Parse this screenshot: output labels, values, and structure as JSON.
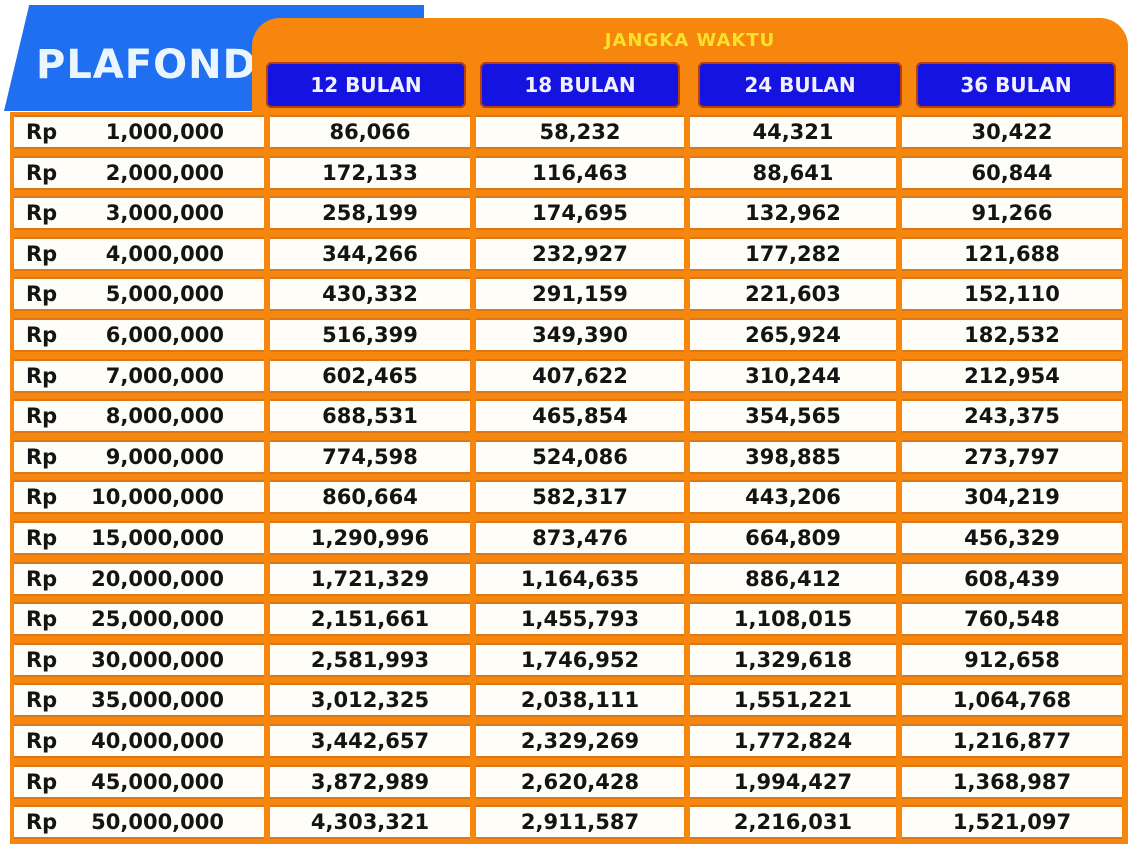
{
  "header": {
    "plafond_label": "PLAFOND",
    "jangka_waktu_label": "JANGKA WAKTU",
    "columns": [
      "12 BULAN",
      "18 BULAN",
      "24 BULAN",
      "36 BULAN"
    ]
  },
  "colors": {
    "plafond_blue": "#1f6ff0",
    "frame_orange": "#f7860f",
    "column_header_blue": "#1413e0",
    "jangka_yellow": "#f9e22a",
    "cell_bg": "#fffdf7"
  },
  "currency": "Rp",
  "rows": [
    {
      "plafond": "1,000,000",
      "m12": "86,066",
      "m18": "58,232",
      "m24": "44,321",
      "m36": "30,422"
    },
    {
      "plafond": "2,000,000",
      "m12": "172,133",
      "m18": "116,463",
      "m24": "88,641",
      "m36": "60,844"
    },
    {
      "plafond": "3,000,000",
      "m12": "258,199",
      "m18": "174,695",
      "m24": "132,962",
      "m36": "91,266"
    },
    {
      "plafond": "4,000,000",
      "m12": "344,266",
      "m18": "232,927",
      "m24": "177,282",
      "m36": "121,688"
    },
    {
      "plafond": "5,000,000",
      "m12": "430,332",
      "m18": "291,159",
      "m24": "221,603",
      "m36": "152,110"
    },
    {
      "plafond": "6,000,000",
      "m12": "516,399",
      "m18": "349,390",
      "m24": "265,924",
      "m36": "182,532"
    },
    {
      "plafond": "7,000,000",
      "m12": "602,465",
      "m18": "407,622",
      "m24": "310,244",
      "m36": "212,954"
    },
    {
      "plafond": "8,000,000",
      "m12": "688,531",
      "m18": "465,854",
      "m24": "354,565",
      "m36": "243,375"
    },
    {
      "plafond": "9,000,000",
      "m12": "774,598",
      "m18": "524,086",
      "m24": "398,885",
      "m36": "273,797"
    },
    {
      "plafond": "10,000,000",
      "m12": "860,664",
      "m18": "582,317",
      "m24": "443,206",
      "m36": "304,219"
    },
    {
      "plafond": "15,000,000",
      "m12": "1,290,996",
      "m18": "873,476",
      "m24": "664,809",
      "m36": "456,329"
    },
    {
      "plafond": "20,000,000",
      "m12": "1,721,329",
      "m18": "1,164,635",
      "m24": "886,412",
      "m36": "608,439"
    },
    {
      "plafond": "25,000,000",
      "m12": "2,151,661",
      "m18": "1,455,793",
      "m24": "1,108,015",
      "m36": "760,548"
    },
    {
      "plafond": "30,000,000",
      "m12": "2,581,993",
      "m18": "1,746,952",
      "m24": "1,329,618",
      "m36": "912,658"
    },
    {
      "plafond": "35,000,000",
      "m12": "3,012,325",
      "m18": "2,038,111",
      "m24": "1,551,221",
      "m36": "1,064,768"
    },
    {
      "plafond": "40,000,000",
      "m12": "3,442,657",
      "m18": "2,329,269",
      "m24": "1,772,824",
      "m36": "1,216,877"
    },
    {
      "plafond": "45,000,000",
      "m12": "3,872,989",
      "m18": "2,620,428",
      "m24": "1,994,427",
      "m36": "1,368,987"
    },
    {
      "plafond": "50,000,000",
      "m12": "4,303,321",
      "m18": "2,911,587",
      "m24": "2,216,031",
      "m36": "1,521,097"
    }
  ]
}
